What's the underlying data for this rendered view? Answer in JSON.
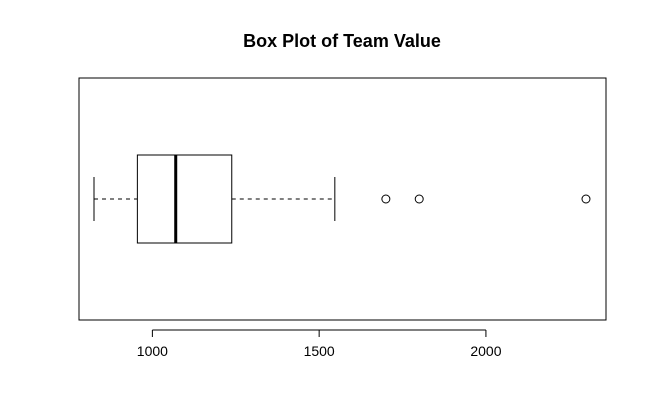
{
  "chart_data": {
    "type": "boxplot",
    "orientation": "horizontal",
    "title": "Box Plot of Team Value",
    "xlabel": "",
    "ylabel": "",
    "xlim": [
      780,
      2360
    ],
    "ticks": [
      1000,
      1500,
      2000
    ],
    "tick_labels": [
      "1000",
      "1500",
      "2000"
    ],
    "grid": false,
    "box": {
      "whisker_low": 825,
      "q1": 955,
      "median": 1070,
      "q3": 1238,
      "whisker_high": 1547
    },
    "outliers": [
      1700,
      1800,
      2300
    ]
  }
}
